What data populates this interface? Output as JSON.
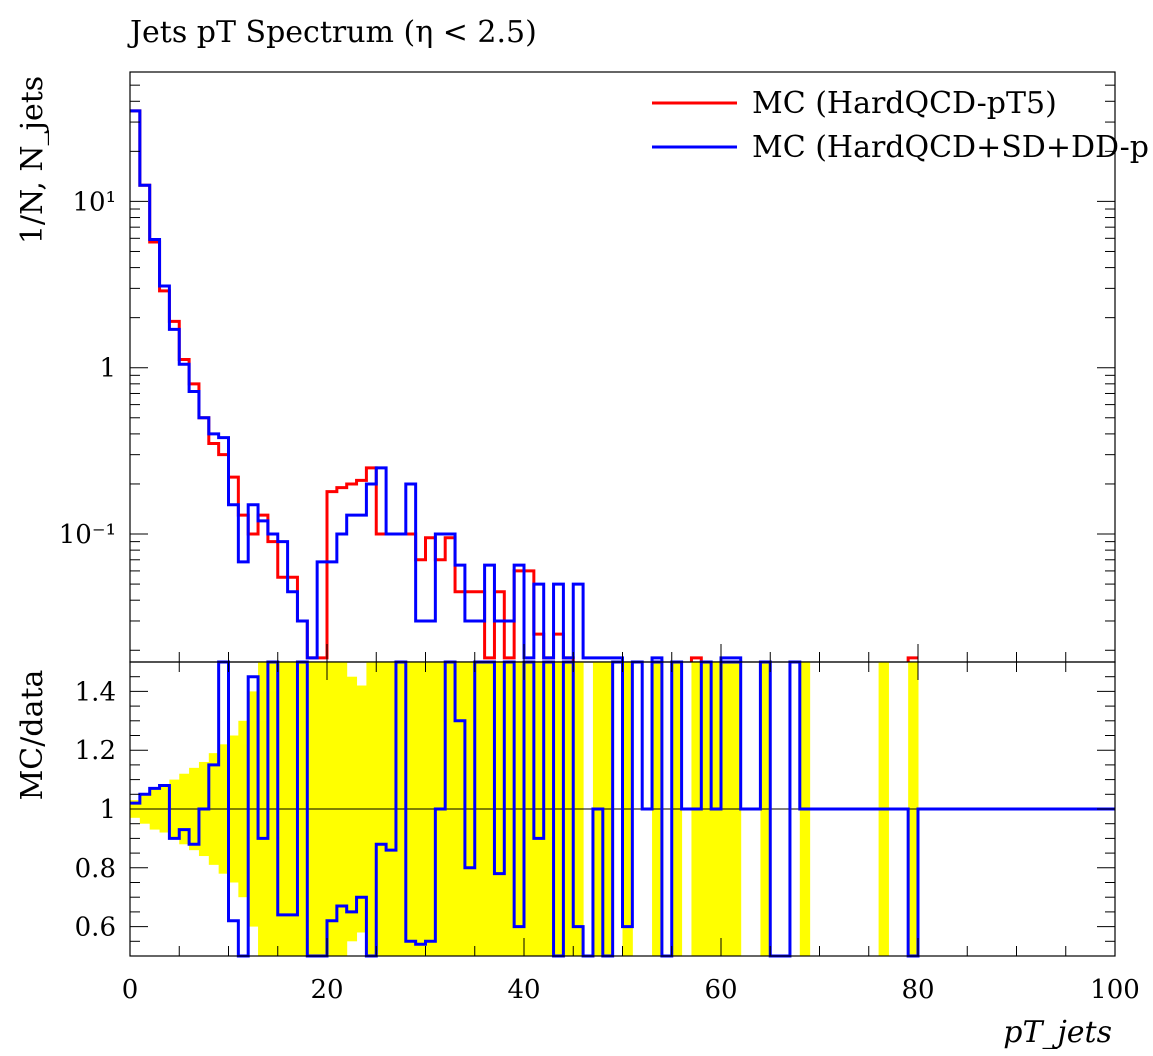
{
  "chart_data": {
    "type": "line",
    "title": "Jets pT Spectrum (η < 2.5)",
    "xlabel": "pT_jets",
    "xlim": [
      0,
      100
    ],
    "x_ticks": [
      "0",
      "20",
      "40",
      "60",
      "80",
      "100"
    ],
    "bin_edges": [
      0,
      1,
      2,
      3,
      4,
      5,
      6,
      7,
      8,
      9,
      10,
      11,
      12,
      13,
      14,
      15,
      16,
      17,
      18,
      19,
      20,
      21,
      22,
      23,
      24,
      25,
      26,
      27,
      28,
      29,
      30,
      31,
      32,
      33,
      34,
      35,
      36,
      37,
      38,
      39,
      40,
      41,
      42,
      43,
      44,
      45,
      46,
      47,
      48,
      49,
      50,
      51,
      52,
      53,
      54,
      55,
      56,
      57,
      58,
      59,
      60,
      61,
      62,
      63,
      64,
      65,
      66,
      67,
      68,
      69,
      70,
      71,
      72,
      73,
      74,
      75,
      76,
      77,
      78,
      79,
      80
    ],
    "upper": {
      "ylabel": "1/N, N_jets",
      "yscale": "log",
      "ylim": [
        0.017,
        60
      ],
      "y_ticks": [
        {
          "value": 10,
          "label": "10¹"
        },
        {
          "value": 1,
          "label": "1"
        },
        {
          "value": 0.1,
          "label": "10⁻¹"
        }
      ],
      "series": [
        {
          "name": "MC (HardQCD-pT5)",
          "color": "#ff0000",
          "values": [
            35,
            12.5,
            5.7,
            2.9,
            1.9,
            1.12,
            0.8,
            0.5,
            0.35,
            0.3,
            0.22,
            0.13,
            0.1,
            0.13,
            0.09,
            0.055,
            0.055,
            0.03,
            0.018,
            0.018,
            0.18,
            0.19,
            0.2,
            0.21,
            0.25,
            0.1,
            0.1,
            0.1,
            0.1,
            0.07,
            0.095,
            0.07,
            0.095,
            0.045,
            0.045,
            0.045,
            0.018,
            0.045,
            0.018,
            0.06,
            0.06,
            0.025,
            0.018,
            0.025,
            0.018,
            0,
            0,
            0,
            0,
            0,
            0,
            0,
            0,
            0,
            0,
            0,
            0,
            0.018,
            0,
            0,
            0,
            0,
            0,
            0,
            0,
            0,
            0,
            0,
            0,
            0,
            0,
            0,
            0,
            0,
            0,
            0,
            0,
            0,
            0,
            0.018
          ]
        },
        {
          "name": "MC (HardQCD+SD+DD-p",
          "color": "#0000ff",
          "values": [
            35,
            12.5,
            5.9,
            3.1,
            1.7,
            1.05,
            0.72,
            0.5,
            0.4,
            0.38,
            0.15,
            0.068,
            0.15,
            0.12,
            0.1,
            0.09,
            0.045,
            0.03,
            0.018,
            0.068,
            0.068,
            0.1,
            0.13,
            0.13,
            0.2,
            0.25,
            0.1,
            0.1,
            0.2,
            0.03,
            0.03,
            0.1,
            0.1,
            0.065,
            0.03,
            0.03,
            0.065,
            0.03,
            0.03,
            0.065,
            0.018,
            0.05,
            0.018,
            0.05,
            0.018,
            0.05,
            0.018,
            0.018,
            0.018,
            0.018,
            0,
            0,
            0,
            0.018,
            0,
            0,
            0,
            0,
            0,
            0,
            0.018,
            0.018,
            0,
            0,
            0,
            0,
            0,
            0,
            0,
            0,
            0,
            0,
            0,
            0,
            0,
            0,
            0,
            0,
            0,
            0
          ]
        }
      ]
    },
    "lower": {
      "ylabel": "MC/data",
      "ylim": [
        0.5,
        1.5
      ],
      "y_ticks": [
        "1.4",
        "1.2",
        "1",
        "0.8",
        "0.6"
      ],
      "ratio_line": 1,
      "band_color": "#ffff00",
      "band_half_widths": [
        0.03,
        0.05,
        0.07,
        0.08,
        0.1,
        0.12,
        0.14,
        0.16,
        0.19,
        0.22,
        0.25,
        0.3,
        0.4,
        0.5,
        0.5,
        0.5,
        0.5,
        0.5,
        0.5,
        0.5,
        0.5,
        0.5,
        0.45,
        0.42,
        0.5,
        0.5,
        0.5,
        0.5,
        0.5,
        0.5,
        0.5,
        0.5,
        0.5,
        0.5,
        0.5,
        0.5,
        0.5,
        0.5,
        0.5,
        0.5,
        0.5,
        0.5,
        0.5,
        0.5,
        0.5,
        0.5,
        0,
        0.5,
        0.5,
        0,
        0.5,
        0,
        0,
        0.5,
        0,
        0.5,
        0,
        0.5,
        0.5,
        0.5,
        0.5,
        0.5,
        0,
        0,
        0.5,
        0,
        0,
        0,
        0.5,
        0,
        0,
        0,
        0,
        0,
        0,
        0,
        0.5,
        0,
        0,
        0.5
      ],
      "ratio_values": [
        1.02,
        1.05,
        1.07,
        1.08,
        0.9,
        0.93,
        0.88,
        1.0,
        1.15,
        1.5,
        0.62,
        0.5,
        1.45,
        0.9,
        1.5,
        0.64,
        0.64,
        1.5,
        0.5,
        0.5,
        0.62,
        0.67,
        0.65,
        0.7,
        0.5,
        0.88,
        0.86,
        1.5,
        0.55,
        0.54,
        0.55,
        1.0,
        1.5,
        1.3,
        0.8,
        1.5,
        1.5,
        0.78,
        1.5,
        0.6,
        1.5,
        0.9,
        1.5,
        0.5,
        1.5,
        0.6,
        0.5,
        1.0,
        0.5,
        1.5,
        0.6,
        1.5,
        1.0,
        1.5,
        0.5,
        1.5,
        1.0,
        1.0,
        1.5,
        1.0,
        1.5,
        1.5,
        1.0,
        1.0,
        1.5,
        0.5,
        0.5,
        1.5,
        1.0,
        1.0,
        1.0,
        1.0,
        1.0,
        1.0,
        1.0,
        1.0,
        1.0,
        1.0,
        1.0,
        0.5
      ],
      "tail_value": 1.0
    },
    "legend_position": "top-right"
  }
}
